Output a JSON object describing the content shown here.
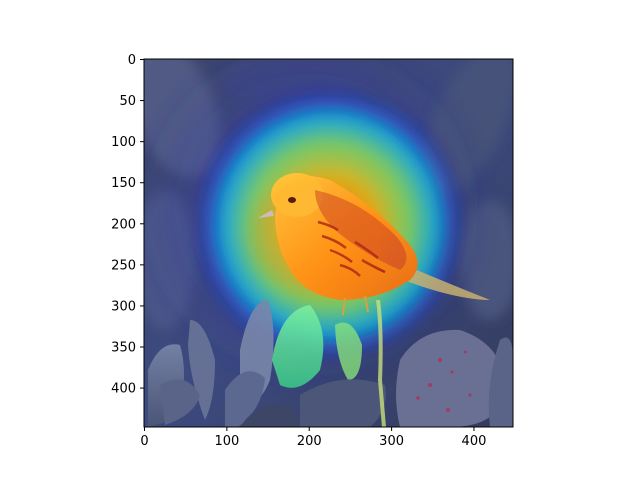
{
  "figure": {
    "type": "image-with-gradcam-overlay",
    "axis_color": "#000000",
    "background": "#ffffff"
  },
  "image_content": {
    "subject": "yellow warbler perched on branch",
    "overlay": "jet colormap saliency heatmap",
    "colormap_colors": [
      "#00007f",
      "#0000ff",
      "#00ffff",
      "#ffff00",
      "#ff7f00",
      "#ff0000"
    ]
  },
  "axes": {
    "x": {
      "min": 0,
      "max": 448,
      "ticks": [
        0,
        100,
        200,
        300,
        400
      ],
      "labels": [
        "0",
        "100",
        "200",
        "300",
        "400"
      ]
    },
    "y": {
      "min": 0,
      "max": 448,
      "inverted": true,
      "ticks": [
        0,
        50,
        100,
        150,
        200,
        250,
        300,
        350,
        400
      ],
      "labels": [
        "0",
        "50",
        "100",
        "150",
        "200",
        "250",
        "300",
        "350",
        "400"
      ]
    }
  }
}
